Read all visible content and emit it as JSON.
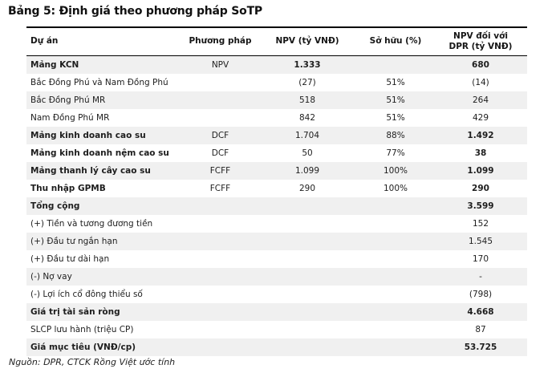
{
  "title": "Bảng 5: Định giá theo phương pháp SoTP",
  "source_note": "Nguồn: DPR, CTCK Rồng Việt ước tính",
  "colors": {
    "row_shade": "#f0f0f0",
    "text": "#1b1b1b",
    "border": "#000000"
  },
  "table": {
    "header": {
      "project": "Dự án",
      "method": "Phương pháp",
      "npv": "NPV (tỷ VNĐ)",
      "ownership": "Sở hữu (%)",
      "npv_dpr_line1": "NPV đối với",
      "npv_dpr_line2": "DPR (tỷ VNĐ)"
    },
    "rows": [
      {
        "label": "Mảng KCN",
        "method": "NPV",
        "npv": "1.333",
        "own": "",
        "dpr": "680",
        "bold": true,
        "bold_npv": true,
        "bold_dpr": true
      },
      {
        "label": "Bắc Đồng Phú và Nam Đồng Phú",
        "method": "",
        "npv": "(27)",
        "own": "51%",
        "dpr": "(14)",
        "bold": false,
        "bold_npv": false,
        "bold_dpr": false
      },
      {
        "label": "Bắc Đồng Phú MR",
        "method": "",
        "npv": "518",
        "own": "51%",
        "dpr": "264",
        "bold": false,
        "bold_npv": false,
        "bold_dpr": false
      },
      {
        "label": "Nam Đồng Phú MR",
        "method": "",
        "npv": "842",
        "own": "51%",
        "dpr": "429",
        "bold": false,
        "bold_npv": false,
        "bold_dpr": false
      },
      {
        "label": "Mảng kinh doanh cao su",
        "method": "DCF",
        "npv": "1.704",
        "own": "88%",
        "dpr": "1.492",
        "bold": true,
        "bold_npv": false,
        "bold_dpr": true
      },
      {
        "label": "Mảng kinh doanh nệm cao su",
        "method": "DCF",
        "npv": "50",
        "own": "77%",
        "dpr": "38",
        "bold": true,
        "bold_npv": false,
        "bold_dpr": true
      },
      {
        "label": "Mảng thanh lý cây cao su",
        "method": "FCFF",
        "npv": "1.099",
        "own": "100%",
        "dpr": "1.099",
        "bold": true,
        "bold_npv": false,
        "bold_dpr": true
      },
      {
        "label": "Thu nhập GPMB",
        "method": "FCFF",
        "npv": "290",
        "own": "100%",
        "dpr": "290",
        "bold": true,
        "bold_npv": false,
        "bold_dpr": true
      },
      {
        "label": "Tổng cộng",
        "method": "",
        "npv": "",
        "own": "",
        "dpr": "3.599",
        "bold": true,
        "bold_npv": false,
        "bold_dpr": true
      },
      {
        "label": "(+) Tiền và tương đương tiền",
        "method": "",
        "npv": "",
        "own": "",
        "dpr": "152",
        "bold": false,
        "bold_npv": false,
        "bold_dpr": false
      },
      {
        "label": "(+) Đầu tư ngắn hạn",
        "method": "",
        "npv": "",
        "own": "",
        "dpr": "1.545",
        "bold": false,
        "bold_npv": false,
        "bold_dpr": false
      },
      {
        "label": "(+) Đầu tư dài hạn",
        "method": "",
        "npv": "",
        "own": "",
        "dpr": "170",
        "bold": false,
        "bold_npv": false,
        "bold_dpr": false
      },
      {
        "label": "(-) Nợ vay",
        "method": "",
        "npv": "",
        "own": "",
        "dpr": "-",
        "bold": false,
        "bold_npv": false,
        "bold_dpr": false
      },
      {
        "label": "(-) Lợi ích cổ đông thiểu số",
        "method": "",
        "npv": "",
        "own": "",
        "dpr": "(798)",
        "bold": false,
        "bold_npv": false,
        "bold_dpr": false
      },
      {
        "label": "Giá trị tài sản ròng",
        "method": "",
        "npv": "",
        "own": "",
        "dpr": "4.668",
        "bold": true,
        "bold_npv": false,
        "bold_dpr": true
      },
      {
        "label": "SLCP lưu hành (triệu CP)",
        "method": "",
        "npv": "",
        "own": "",
        "dpr": "87",
        "bold": false,
        "bold_npv": false,
        "bold_dpr": false
      },
      {
        "label": "Giá mục tiêu (VNĐ/cp)",
        "method": "",
        "npv": "",
        "own": "",
        "dpr": "53.725",
        "bold": true,
        "bold_npv": false,
        "bold_dpr": true
      }
    ]
  }
}
